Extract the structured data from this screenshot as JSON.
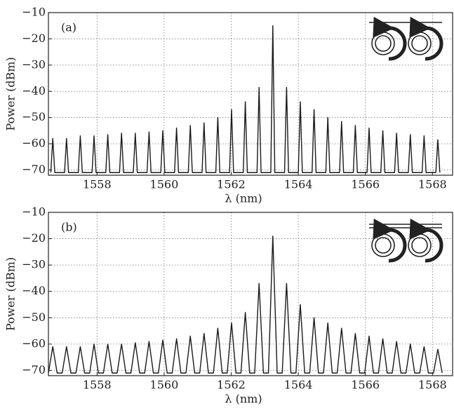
{
  "chart_data": [
    {
      "type": "line",
      "panel_label": "(a)",
      "x_label": "λ (nm)",
      "y_label": "Power (dBm)",
      "color": "#1a1a1a",
      "grid": true,
      "xlim": [
        1556.55,
        1568.6
      ],
      "ylim": [
        -72,
        -10
      ],
      "xticks": [
        1558,
        1560,
        1562,
        1564,
        1566,
        1568
      ],
      "yticks": [
        {
          "value": -70,
          "label": "−70"
        },
        {
          "value": -60,
          "label": "−60"
        },
        {
          "value": -50,
          "label": "−50"
        },
        {
          "value": -40,
          "label": "−40"
        },
        {
          "value": -30,
          "label": "−30"
        },
        {
          "value": -20,
          "label": "−20"
        },
        {
          "value": -10,
          "label": "−10"
        }
      ],
      "x": [
        1556.62,
        1556.68,
        1556.74,
        1557.03,
        1557.09,
        1557.15,
        1557.44,
        1557.5,
        1557.56,
        1557.85,
        1557.91,
        1557.97,
        1558.26,
        1558.32,
        1558.38,
        1558.67,
        1558.73,
        1558.79,
        1559.08,
        1559.14,
        1559.2,
        1559.49,
        1559.55,
        1559.61,
        1559.9,
        1559.96,
        1560.02,
        1560.31,
        1560.37,
        1560.43,
        1560.72,
        1560.78,
        1560.84,
        1561.13,
        1561.19,
        1561.25,
        1561.54,
        1561.6,
        1561.66,
        1561.95,
        1562.01,
        1562.07,
        1562.36,
        1562.42,
        1562.48,
        1562.77,
        1562.83,
        1562.89,
        1563.18,
        1563.24,
        1563.3,
        1563.59,
        1563.65,
        1563.71,
        1564.0,
        1564.06,
        1564.12,
        1564.41,
        1564.47,
        1564.53,
        1564.82,
        1564.88,
        1564.94,
        1565.23,
        1565.29,
        1565.35,
        1565.64,
        1565.7,
        1565.76,
        1566.05,
        1566.11,
        1566.17,
        1566.46,
        1566.52,
        1566.58,
        1566.87,
        1566.93,
        1566.99,
        1567.28,
        1567.34,
        1567.4,
        1567.69,
        1567.75,
        1567.81,
        1568.1,
        1568.16,
        1568.22
      ],
      "values": [
        -71,
        -58,
        -71,
        -71,
        -58,
        -71,
        -71,
        -57,
        -71,
        -71,
        -57,
        -71,
        -71,
        -56.5,
        -71,
        -71,
        -56,
        -71,
        -71,
        -56,
        -71,
        -71,
        -55.5,
        -71,
        -71,
        -55,
        -71,
        -71,
        -54,
        -71,
        -71,
        -53,
        -71,
        -71,
        -52,
        -71,
        -71,
        -50,
        -71,
        -71,
        -47,
        -71,
        -71,
        -44,
        -71,
        -71,
        -38.5,
        -71,
        -71,
        -15,
        -71,
        -71,
        -38.5,
        -71,
        -71,
        -44,
        -71,
        -71,
        -47,
        -71,
        -71,
        -50,
        -71,
        -71,
        -51.5,
        -71,
        -71,
        -53,
        -71,
        -71,
        -54,
        -71,
        -71,
        -55,
        -71,
        -71,
        -56,
        -71,
        -71,
        -56.5,
        -71,
        -71,
        -57,
        -71,
        -71,
        -58.5,
        -71
      ]
    },
    {
      "type": "line",
      "panel_label": "(b)",
      "x_label": "λ (nm)",
      "y_label": "Power (dBm)",
      "color": "#1a1a1a",
      "grid": true,
      "xlim": [
        1556.55,
        1568.6
      ],
      "ylim": [
        -72,
        -10
      ],
      "xticks": [
        1558,
        1560,
        1562,
        1564,
        1566,
        1568
      ],
      "yticks": [
        {
          "value": -70,
          "label": "−70"
        },
        {
          "value": -60,
          "label": "−60"
        },
        {
          "value": -50,
          "label": "−50"
        },
        {
          "value": -40,
          "label": "−40"
        },
        {
          "value": -30,
          "label": "−30"
        },
        {
          "value": -20,
          "label": "−20"
        },
        {
          "value": -10,
          "label": "−10"
        }
      ],
      "x": [
        1556.55,
        1556.68,
        1556.81,
        1556.96,
        1557.09,
        1557.22,
        1557.37,
        1557.5,
        1557.63,
        1557.78,
        1557.91,
        1558.04,
        1558.19,
        1558.32,
        1558.45,
        1558.6,
        1558.73,
        1558.86,
        1559.01,
        1559.14,
        1559.27,
        1559.42,
        1559.55,
        1559.68,
        1559.83,
        1559.96,
        1560.09,
        1560.24,
        1560.37,
        1560.5,
        1560.65,
        1560.78,
        1560.91,
        1561.06,
        1561.19,
        1561.32,
        1561.47,
        1561.6,
        1561.73,
        1561.88,
        1562.01,
        1562.14,
        1562.29,
        1562.42,
        1562.55,
        1562.7,
        1562.83,
        1562.96,
        1563.11,
        1563.24,
        1563.37,
        1563.52,
        1563.65,
        1563.78,
        1563.93,
        1564.06,
        1564.19,
        1564.34,
        1564.47,
        1564.6,
        1564.75,
        1564.88,
        1565.01,
        1565.16,
        1565.29,
        1565.42,
        1565.57,
        1565.7,
        1565.83,
        1565.98,
        1566.11,
        1566.24,
        1566.39,
        1566.52,
        1566.65,
        1566.8,
        1566.93,
        1567.06,
        1567.21,
        1567.34,
        1567.47,
        1567.62,
        1567.75,
        1567.88,
        1568.03,
        1568.16,
        1568.29
      ],
      "values": [
        -71,
        -61,
        -71,
        -71,
        -61,
        -71,
        -71,
        -61,
        -71,
        -71,
        -60,
        -71,
        -71,
        -60,
        -71,
        -71,
        -60,
        -71,
        -71,
        -59.5,
        -71,
        -71,
        -59,
        -71,
        -71,
        -58.5,
        -71,
        -71,
        -58,
        -71,
        -71,
        -57,
        -71,
        -71,
        -56,
        -71,
        -71,
        -54,
        -71,
        -71,
        -52,
        -71,
        -71,
        -48,
        -71,
        -71,
        -37,
        -71,
        -71,
        -19,
        -71,
        -71,
        -37,
        -71,
        -71,
        -45,
        -71,
        -71,
        -50,
        -71,
        -71,
        -52,
        -71,
        -71,
        -54,
        -71,
        -71,
        -56,
        -71,
        -71,
        -57,
        -71,
        -71,
        -58,
        -71,
        -71,
        -59,
        -71,
        -71,
        -60,
        -71,
        -71,
        -61,
        -71,
        -71,
        -62,
        -71
      ]
    }
  ]
}
